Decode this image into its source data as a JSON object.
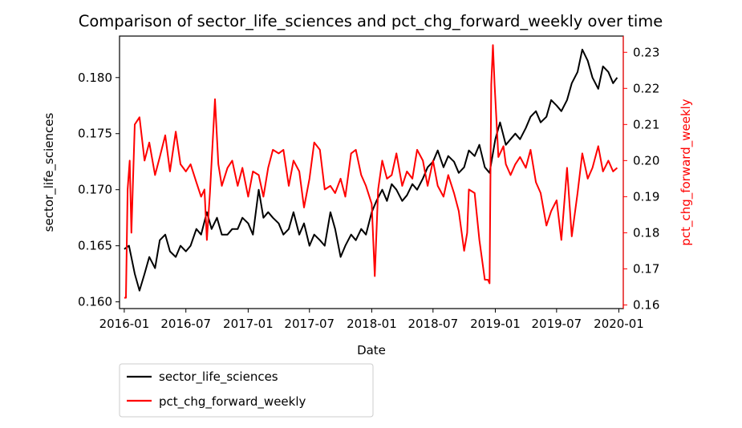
{
  "chart_data": {
    "type": "line",
    "title": "Comparison of sector_life_sciences and pct_chg_forward_weekly over time",
    "xlabel": "Date",
    "ylabel_left": "sector_life_sciences",
    "ylabel_right": "pct_chg_forward_weekly",
    "xlim": [
      "2015-12-18",
      "2020-01-14"
    ],
    "ylim_left": [
      0.1594,
      0.1837
    ],
    "ylim_right": [
      0.159,
      0.2345
    ],
    "x_ticks": [
      "2016-01",
      "2016-07",
      "2017-01",
      "2017-07",
      "2018-01",
      "2018-07",
      "2019-01",
      "2019-07",
      "2020-01"
    ],
    "y_ticks_left": [
      "0.160",
      "0.165",
      "0.170",
      "0.175",
      "0.180"
    ],
    "y_ticks_right": [
      "0.16",
      "0.17",
      "0.18",
      "0.19",
      "0.20",
      "0.21",
      "0.22",
      "0.23"
    ],
    "grid": false,
    "legend_position": "below-left",
    "series": [
      {
        "name": "sector_life_sciences",
        "axis": "left",
        "color": "#000000",
        "points": [
          [
            "2016-01-01",
            0.1647
          ],
          [
            "2016-01-15",
            0.165
          ],
          [
            "2016-02-01",
            0.1625
          ],
          [
            "2016-02-15",
            0.161
          ],
          [
            "2016-03-01",
            0.1625
          ],
          [
            "2016-03-15",
            0.164
          ],
          [
            "2016-04-01",
            0.163
          ],
          [
            "2016-04-15",
            0.1655
          ],
          [
            "2016-05-01",
            0.166
          ],
          [
            "2016-05-15",
            0.1645
          ],
          [
            "2016-06-01",
            0.164
          ],
          [
            "2016-06-15",
            0.165
          ],
          [
            "2016-07-01",
            0.1645
          ],
          [
            "2016-07-15",
            0.165
          ],
          [
            "2016-08-01",
            0.1665
          ],
          [
            "2016-08-15",
            0.166
          ],
          [
            "2016-09-01",
            0.168
          ],
          [
            "2016-09-15",
            0.1665
          ],
          [
            "2016-10-01",
            0.1675
          ],
          [
            "2016-10-15",
            0.166
          ],
          [
            "2016-11-01",
            0.166
          ],
          [
            "2016-11-15",
            0.1665
          ],
          [
            "2016-12-01",
            0.1665
          ],
          [
            "2016-12-15",
            0.1675
          ],
          [
            "2017-01-01",
            0.167
          ],
          [
            "2017-01-15",
            0.166
          ],
          [
            "2017-02-01",
            0.17
          ],
          [
            "2017-02-15",
            0.1675
          ],
          [
            "2017-03-01",
            0.168
          ],
          [
            "2017-03-15",
            0.1675
          ],
          [
            "2017-04-01",
            0.167
          ],
          [
            "2017-04-15",
            0.166
          ],
          [
            "2017-05-01",
            0.1665
          ],
          [
            "2017-05-15",
            0.168
          ],
          [
            "2017-06-01",
            0.166
          ],
          [
            "2017-06-15",
            0.167
          ],
          [
            "2017-07-01",
            0.165
          ],
          [
            "2017-07-15",
            0.166
          ],
          [
            "2017-08-01",
            0.1655
          ],
          [
            "2017-08-15",
            0.165
          ],
          [
            "2017-09-01",
            0.168
          ],
          [
            "2017-09-15",
            0.1665
          ],
          [
            "2017-10-01",
            0.164
          ],
          [
            "2017-10-15",
            0.165
          ],
          [
            "2017-11-01",
            0.166
          ],
          [
            "2017-11-15",
            0.1655
          ],
          [
            "2017-12-01",
            0.1665
          ],
          [
            "2017-12-15",
            0.166
          ],
          [
            "2018-01-01",
            0.168
          ],
          [
            "2018-01-15",
            0.169
          ],
          [
            "2018-02-01",
            0.17
          ],
          [
            "2018-02-15",
            0.169
          ],
          [
            "2018-03-01",
            0.1705
          ],
          [
            "2018-03-15",
            0.17
          ],
          [
            "2018-04-01",
            0.169
          ],
          [
            "2018-04-15",
            0.1695
          ],
          [
            "2018-05-01",
            0.1705
          ],
          [
            "2018-05-15",
            0.17
          ],
          [
            "2018-06-01",
            0.171
          ],
          [
            "2018-06-15",
            0.172
          ],
          [
            "2018-07-01",
            0.1725
          ],
          [
            "2018-07-15",
            0.1735
          ],
          [
            "2018-08-01",
            0.172
          ],
          [
            "2018-08-15",
            0.173
          ],
          [
            "2018-09-01",
            0.1725
          ],
          [
            "2018-09-15",
            0.1715
          ],
          [
            "2018-10-01",
            0.172
          ],
          [
            "2018-10-15",
            0.1735
          ],
          [
            "2018-11-01",
            0.173
          ],
          [
            "2018-11-15",
            0.174
          ],
          [
            "2018-12-01",
            0.172
          ],
          [
            "2018-12-15",
            0.1715
          ],
          [
            "2019-01-01",
            0.1745
          ],
          [
            "2019-01-15",
            0.176
          ],
          [
            "2019-02-01",
            0.174
          ],
          [
            "2019-02-15",
            0.1745
          ],
          [
            "2019-03-01",
            0.175
          ],
          [
            "2019-03-15",
            0.1745
          ],
          [
            "2019-04-01",
            0.1755
          ],
          [
            "2019-04-15",
            0.1765
          ],
          [
            "2019-05-01",
            0.177
          ],
          [
            "2019-05-15",
            0.176
          ],
          [
            "2019-06-01",
            0.1765
          ],
          [
            "2019-06-15",
            0.178
          ],
          [
            "2019-07-01",
            0.1775
          ],
          [
            "2019-07-15",
            0.177
          ],
          [
            "2019-08-01",
            0.178
          ],
          [
            "2019-08-15",
            0.1795
          ],
          [
            "2019-09-01",
            0.1805
          ],
          [
            "2019-09-15",
            0.1825
          ],
          [
            "2019-10-01",
            0.1815
          ],
          [
            "2019-10-15",
            0.18
          ],
          [
            "2019-11-01",
            0.179
          ],
          [
            "2019-11-15",
            0.181
          ],
          [
            "2019-12-01",
            0.1805
          ],
          [
            "2019-12-15",
            0.1795
          ],
          [
            "2019-12-27",
            0.18
          ]
        ]
      },
      {
        "name": "pct_chg_forward_weekly",
        "axis": "right",
        "color": "#ff0000",
        "points": [
          [
            "2016-01-01",
            0.162
          ],
          [
            "2016-01-06",
            0.162
          ],
          [
            "2016-01-11",
            0.192
          ],
          [
            "2016-01-17",
            0.2
          ],
          [
            "2016-01-22",
            0.18
          ],
          [
            "2016-02-01",
            0.21
          ],
          [
            "2016-02-15",
            0.212
          ],
          [
            "2016-03-01",
            0.2
          ],
          [
            "2016-03-15",
            0.205
          ],
          [
            "2016-04-01",
            0.196
          ],
          [
            "2016-04-15",
            0.201
          ],
          [
            "2016-05-01",
            0.207
          ],
          [
            "2016-05-15",
            0.197
          ],
          [
            "2016-06-01",
            0.208
          ],
          [
            "2016-06-15",
            0.199
          ],
          [
            "2016-07-01",
            0.197
          ],
          [
            "2016-07-15",
            0.199
          ],
          [
            "2016-08-01",
            0.194
          ],
          [
            "2016-08-15",
            0.19
          ],
          [
            "2016-08-25",
            0.192
          ],
          [
            "2016-09-01",
            0.178
          ],
          [
            "2016-09-10",
            0.191
          ],
          [
            "2016-09-25",
            0.217
          ],
          [
            "2016-10-05",
            0.199
          ],
          [
            "2016-10-15",
            0.193
          ],
          [
            "2016-11-01",
            0.198
          ],
          [
            "2016-11-15",
            0.2
          ],
          [
            "2016-12-01",
            0.193
          ],
          [
            "2016-12-15",
            0.198
          ],
          [
            "2017-01-01",
            0.19
          ],
          [
            "2017-01-15",
            0.197
          ],
          [
            "2017-02-01",
            0.196
          ],
          [
            "2017-02-15",
            0.19
          ],
          [
            "2017-03-01",
            0.198
          ],
          [
            "2017-03-15",
            0.203
          ],
          [
            "2017-04-01",
            0.202
          ],
          [
            "2017-04-15",
            0.203
          ],
          [
            "2017-05-01",
            0.193
          ],
          [
            "2017-05-15",
            0.2
          ],
          [
            "2017-06-01",
            0.197
          ],
          [
            "2017-06-15",
            0.187
          ],
          [
            "2017-07-01",
            0.195
          ],
          [
            "2017-07-15",
            0.205
          ],
          [
            "2017-08-01",
            0.203
          ],
          [
            "2017-08-15",
            0.192
          ],
          [
            "2017-09-01",
            0.193
          ],
          [
            "2017-09-15",
            0.191
          ],
          [
            "2017-10-01",
            0.195
          ],
          [
            "2017-10-15",
            0.19
          ],
          [
            "2017-11-01",
            0.202
          ],
          [
            "2017-11-15",
            0.203
          ],
          [
            "2017-12-01",
            0.196
          ],
          [
            "2017-12-15",
            0.193
          ],
          [
            "2018-01-01",
            0.188
          ],
          [
            "2018-01-10",
            0.168
          ],
          [
            "2018-01-20",
            0.192
          ],
          [
            "2018-02-01",
            0.2
          ],
          [
            "2018-02-15",
            0.195
          ],
          [
            "2018-03-01",
            0.196
          ],
          [
            "2018-03-15",
            0.202
          ],
          [
            "2018-04-01",
            0.193
          ],
          [
            "2018-04-15",
            0.197
          ],
          [
            "2018-05-01",
            0.195
          ],
          [
            "2018-05-15",
            0.203
          ],
          [
            "2018-06-01",
            0.2
          ],
          [
            "2018-06-15",
            0.193
          ],
          [
            "2018-07-01",
            0.2
          ],
          [
            "2018-07-15",
            0.193
          ],
          [
            "2018-08-01",
            0.19
          ],
          [
            "2018-08-15",
            0.196
          ],
          [
            "2018-09-01",
            0.191
          ],
          [
            "2018-09-15",
            0.186
          ],
          [
            "2018-10-01",
            0.175
          ],
          [
            "2018-10-10",
            0.18
          ],
          [
            "2018-10-15",
            0.192
          ],
          [
            "2018-11-01",
            0.191
          ],
          [
            "2018-11-15",
            0.178
          ],
          [
            "2018-12-01",
            0.167
          ],
          [
            "2018-12-10",
            0.167
          ],
          [
            "2018-12-15",
            0.166
          ],
          [
            "2018-12-20",
            0.221
          ],
          [
            "2018-12-25",
            0.232
          ],
          [
            "2018-12-30",
            0.221
          ],
          [
            "2019-01-10",
            0.201
          ],
          [
            "2019-01-25",
            0.204
          ],
          [
            "2019-02-01",
            0.199
          ],
          [
            "2019-02-15",
            0.196
          ],
          [
            "2019-03-01",
            0.199
          ],
          [
            "2019-03-15",
            0.201
          ],
          [
            "2019-04-01",
            0.198
          ],
          [
            "2019-04-15",
            0.203
          ],
          [
            "2019-05-01",
            0.194
          ],
          [
            "2019-05-15",
            0.191
          ],
          [
            "2019-06-01",
            0.182
          ],
          [
            "2019-06-15",
            0.186
          ],
          [
            "2019-07-01",
            0.189
          ],
          [
            "2019-07-15",
            0.178
          ],
          [
            "2019-08-01",
            0.198
          ],
          [
            "2019-08-15",
            0.179
          ],
          [
            "2019-09-01",
            0.191
          ],
          [
            "2019-09-15",
            0.202
          ],
          [
            "2019-10-01",
            0.195
          ],
          [
            "2019-10-15",
            0.198
          ],
          [
            "2019-11-01",
            0.204
          ],
          [
            "2019-11-15",
            0.197
          ],
          [
            "2019-12-01",
            0.2
          ],
          [
            "2019-12-15",
            0.197
          ],
          [
            "2019-12-27",
            0.198
          ]
        ]
      }
    ]
  }
}
